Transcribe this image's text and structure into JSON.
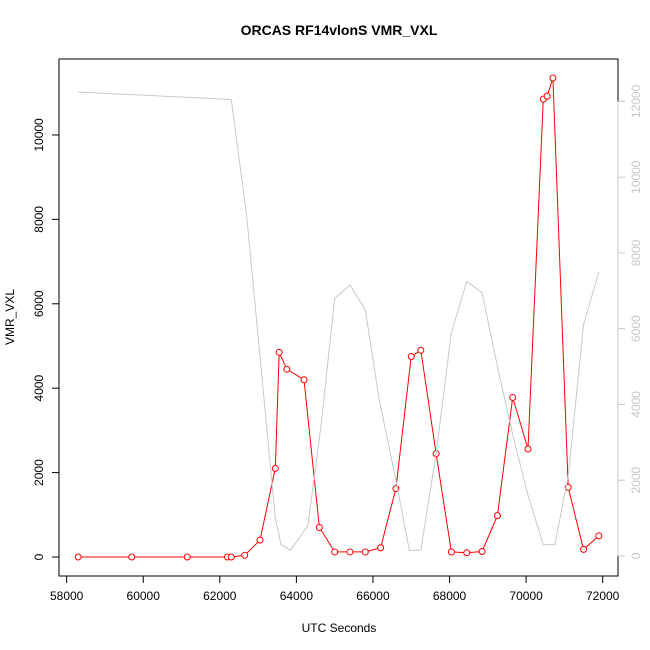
{
  "chart_data": {
    "type": "line",
    "title": "ORCAS RF14vlonS VMR_VXL",
    "xlabel": "UTC Seconds",
    "ylabel": "VMR_VXL",
    "xlim": [
      57800,
      72400
    ],
    "ylim": [
      -450,
      11800
    ],
    "ylim_right": [
      -530,
      13120
    ],
    "x_ticks": [
      58000,
      60000,
      62000,
      64000,
      66000,
      68000,
      70000,
      72000
    ],
    "y_ticks": [
      0,
      2000,
      4000,
      6000,
      8000,
      10000
    ],
    "y2_ticks": [
      0,
      2000,
      4000,
      6000,
      8000,
      10000,
      12000
    ],
    "colors": {
      "primary": "#ff0000",
      "secondary": "#c8c8c8"
    },
    "series": [
      {
        "axis": "left",
        "style": "line+points",
        "color": "#ff0000",
        "x": [
          58300,
          59700,
          61150,
          62200,
          62300,
          62650,
          63050,
          63450,
          63550,
          63750,
          64200,
          64600,
          65000,
          65400,
          65800,
          66200,
          66600,
          67000,
          67250,
          67650,
          68050,
          68450,
          68850,
          69250,
          69650,
          70050,
          70450,
          70550,
          70700,
          71100,
          71500,
          71900
        ],
        "y": [
          0,
          0,
          0,
          0,
          0,
          40,
          400,
          2100,
          4850,
          4450,
          4200,
          700,
          120,
          120,
          120,
          220,
          1620,
          4750,
          4900,
          2450,
          120,
          100,
          130,
          980,
          3780,
          2560,
          10850,
          10920,
          11350,
          1650,
          180,
          500
        ]
      },
      {
        "axis": "right",
        "style": "line",
        "color": "#c8c8c8",
        "x": [
          58300,
          62300,
          62700,
          63450,
          63600,
          63850,
          64300,
          64650,
          65000,
          65400,
          65800,
          66150,
          66600,
          66950,
          67250,
          67650,
          68050,
          68450,
          68850,
          69250,
          69650,
          70050,
          70450,
          70750,
          71100,
          71500,
          71900
        ],
        "y": [
          12250,
          12050,
          9000,
          1000,
          300,
          150,
          800,
          3500,
          6800,
          7150,
          6500,
          4200,
          2000,
          150,
          150,
          2700,
          5900,
          7250,
          6950,
          5000,
          3200,
          1600,
          300,
          300,
          2100,
          6100,
          7500
        ]
      }
    ]
  }
}
